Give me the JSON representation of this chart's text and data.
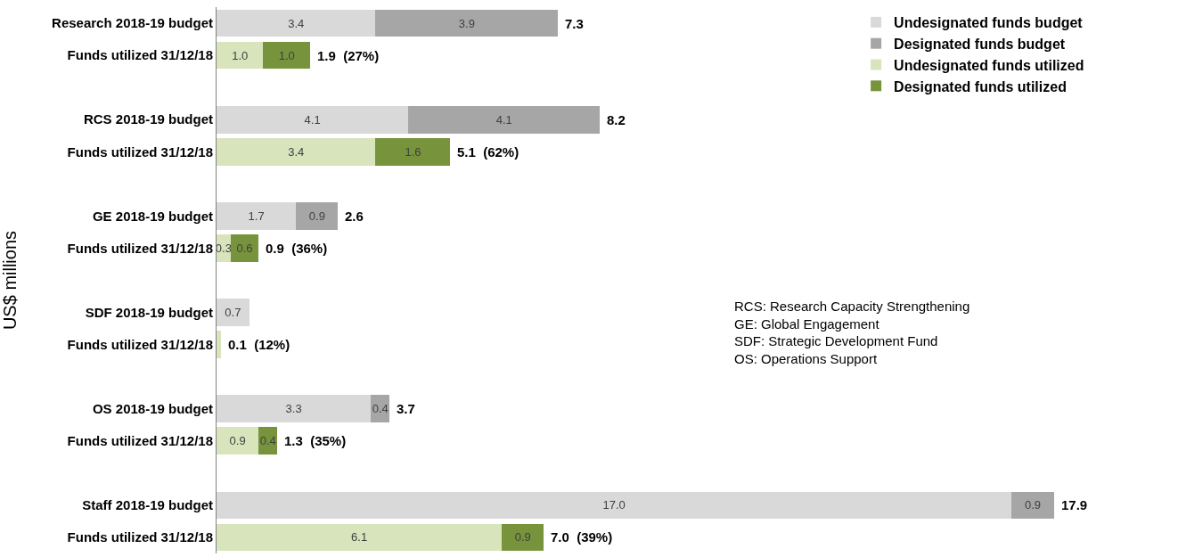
{
  "chart_data": {
    "type": "bar",
    "orientation": "horizontal",
    "stacked": true,
    "ylabel": "US$ millions",
    "categories": [
      "Research 2018-19 budget",
      "Funds utilized 31/12/18",
      "RCS 2018-19 budget",
      "Funds utilized 31/12/18",
      "GE 2018-19 budget",
      "Funds utilized 31/12/18",
      "SDF 2018-19 budget",
      "Funds utilized 31/12/18",
      "OS 2018-19 budget",
      "Funds utilized 31/12/18",
      "Staff 2018-19 budget",
      "Funds utilized 31/12/18"
    ],
    "series": [
      {
        "name": "Undesignated funds budget",
        "color": "#d9d9d9",
        "values": [
          3.4,
          null,
          4.1,
          null,
          1.7,
          null,
          0.7,
          null,
          3.3,
          null,
          17.0,
          null
        ],
        "value_labels": [
          "3.4",
          null,
          "4.1",
          null,
          "1.7",
          null,
          "0.7",
          null,
          "3.3",
          null,
          "17.0",
          null
        ]
      },
      {
        "name": "Designated funds budget",
        "color": "#a6a6a6",
        "values": [
          3.9,
          null,
          4.1,
          null,
          0.9,
          null,
          null,
          null,
          0.4,
          null,
          0.9,
          null
        ],
        "value_labels": [
          "3.9",
          null,
          "4.1",
          null,
          "0.9",
          null,
          null,
          null,
          "0.4",
          null,
          "0.9",
          null
        ]
      },
      {
        "name": "Undesignated funds utilized",
        "color": "#d8e4bc",
        "values": [
          null,
          1.0,
          null,
          3.4,
          null,
          0.3,
          null,
          0.1,
          null,
          0.9,
          null,
          6.1
        ],
        "value_labels": [
          null,
          "1.0",
          null,
          "3.4",
          null,
          "0.3",
          null,
          null,
          null,
          "0.9",
          null,
          "6.1"
        ]
      },
      {
        "name": "Designated funds utilized",
        "color": "#77933c",
        "values": [
          null,
          1.0,
          null,
          1.6,
          null,
          0.6,
          null,
          null,
          null,
          0.4,
          null,
          0.9
        ],
        "value_labels": [
          null,
          "1.0",
          null,
          "1.6",
          null,
          "0.6",
          null,
          null,
          null,
          "0.4",
          null,
          "0.9"
        ]
      }
    ],
    "totals": [
      "7.3",
      "1.9  (27%)",
      "8.2",
      "5.1  (62%)",
      "2.6",
      "0.9  (36%)",
      null,
      "0.1  (12%)",
      "3.7",
      "1.3  (35%)",
      "17.9",
      "7.0  (39%)"
    ],
    "annotations": [
      "RCS: Research Capacity Strengthening",
      "GE: Global Engagement",
      "SDF: Strategic Development Fund",
      "OS: Operations Support"
    ],
    "legend": "top right"
  }
}
